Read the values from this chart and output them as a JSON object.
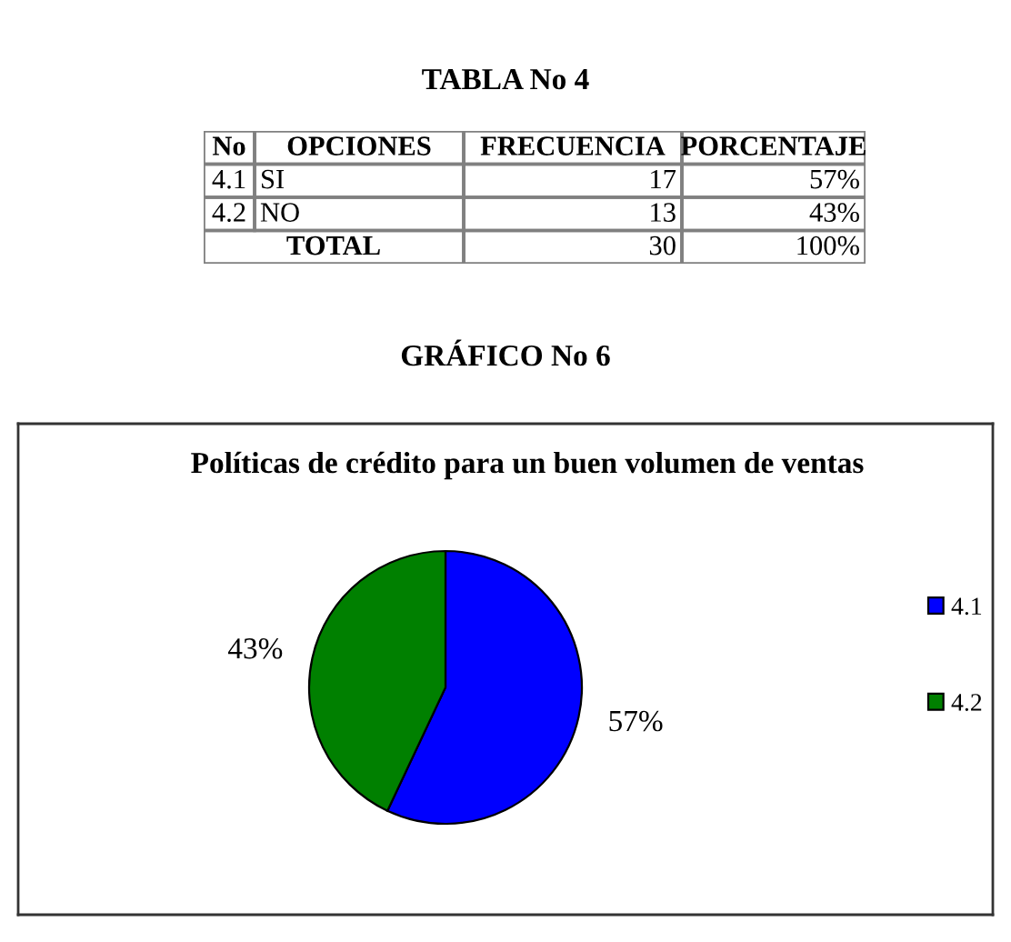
{
  "chart_data": [
    {
      "type": "other",
      "title": "TABLA No 4",
      "categories": [
        "No",
        "OPCIONES",
        "FRECUENCIA",
        "PORCENTAJE"
      ],
      "cell_labels": [
        [
          "4.1",
          "SI",
          "17",
          "57%"
        ],
        [
          "4.2",
          "NO",
          "13",
          "43%"
        ],
        [
          "TOTAL",
          "30",
          "100%"
        ]
      ]
    },
    {
      "type": "pie",
      "title": "GRÁFICO No 6",
      "subtitle": "Políticas de crédito para un buen volumen de ventas",
      "categories": [
        "4.1",
        "4.2"
      ],
      "values": [
        57,
        43
      ],
      "colors": [
        "#0000ff",
        "#008000"
      ],
      "value_labels": [
        "57%",
        "43%"
      ],
      "legend": "right"
    }
  ]
}
